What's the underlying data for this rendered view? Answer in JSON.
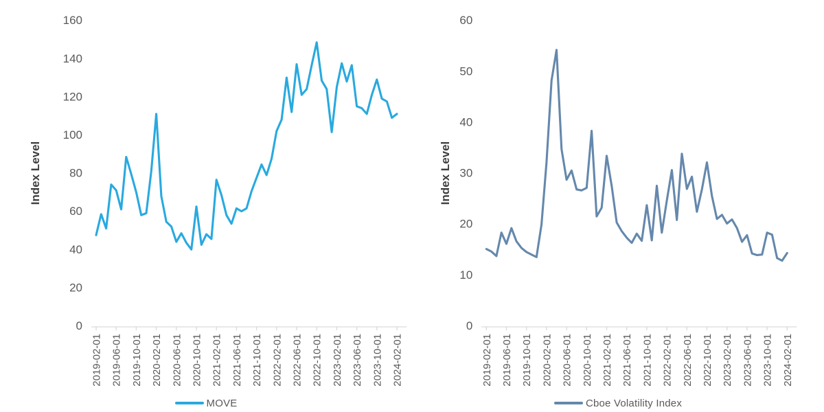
{
  "colors": {
    "background": "#ffffff",
    "axis_line": "#d9d9d9",
    "tick_label": "#595959",
    "axis_title": "#404040",
    "move_line": "#29a9df",
    "vix_line": "#6588ac"
  },
  "charts": [
    {
      "id": "move",
      "y_axis_title": "Index Level",
      "legend_label": "MOVE",
      "line_color": "#29a9df",
      "chart_data": {
        "type": "line",
        "title": "",
        "xlabel": "",
        "ylabel": "Index Level",
        "ylim": [
          0,
          160
        ],
        "ytick_step": 20,
        "xtick_every": 4,
        "grid": false,
        "legend_position": "bottom",
        "xticks_shown": [
          "2019-02-01",
          "2019-06-01",
          "2019-10-01",
          "2020-02-01",
          "2020-06-01",
          "2020-10-01",
          "2021-02-01",
          "2021-06-01",
          "2021-10-01",
          "2022-02-01",
          "2022-06-01",
          "2022-10-01",
          "2023-02-01",
          "2023-06-01",
          "2023-10-01",
          "2024-02-01"
        ],
        "x": [
          "2019-02-01",
          "2019-03-01",
          "2019-04-01",
          "2019-05-01",
          "2019-06-01",
          "2019-07-01",
          "2019-08-01",
          "2019-09-01",
          "2019-10-01",
          "2019-11-01",
          "2019-12-01",
          "2020-01-01",
          "2020-02-01",
          "2020-03-01",
          "2020-04-01",
          "2020-05-01",
          "2020-06-01",
          "2020-07-01",
          "2020-08-01",
          "2020-09-01",
          "2020-10-01",
          "2020-11-01",
          "2020-12-01",
          "2021-01-01",
          "2021-02-01",
          "2021-03-01",
          "2021-04-01",
          "2021-05-01",
          "2021-06-01",
          "2021-07-01",
          "2021-08-01",
          "2021-09-01",
          "2021-10-01",
          "2021-11-01",
          "2021-12-01",
          "2022-01-01",
          "2022-02-01",
          "2022-03-01",
          "2022-04-01",
          "2022-05-01",
          "2022-06-01",
          "2022-07-01",
          "2022-08-01",
          "2022-09-01",
          "2022-10-01",
          "2022-11-01",
          "2022-12-01",
          "2023-01-01",
          "2023-02-01",
          "2023-03-01",
          "2023-04-01",
          "2023-05-01",
          "2023-06-01",
          "2023-07-01",
          "2023-08-01",
          "2023-09-01",
          "2023-10-01",
          "2023-11-01",
          "2023-12-01",
          "2024-01-01",
          "2024-02-01"
        ],
        "values": [
          47.5,
          58.5,
          51,
          74,
          71,
          61,
          88.5,
          79.5,
          70,
          58,
          59,
          81,
          111,
          68,
          54.5,
          52,
          44,
          48.5,
          43.5,
          40,
          62.5,
          42.5,
          48,
          45.5,
          76.5,
          68.5,
          58,
          53.5,
          61.5,
          60,
          61.5,
          70.5,
          77.5,
          84.5,
          79,
          87.5,
          102,
          108,
          130,
          112,
          137,
          121,
          124,
          136.5,
          148.5,
          128.5,
          124,
          101.5,
          125,
          137.5,
          128,
          136.5,
          115,
          114,
          111,
          121,
          129,
          119,
          117.5,
          109,
          111
        ]
      }
    },
    {
      "id": "vix",
      "y_axis_title": "Index Level",
      "legend_label": "Cboe Volatility Index",
      "line_color": "#6588ac",
      "chart_data": {
        "type": "line",
        "title": "",
        "xlabel": "",
        "ylabel": "Index Level",
        "ylim": [
          0,
          60
        ],
        "ytick_step": 10,
        "xtick_every": 4,
        "grid": false,
        "legend_position": "bottom",
        "xticks_shown": [
          "2019-02-01",
          "2019-06-01",
          "2019-10-01",
          "2020-02-01",
          "2020-06-01",
          "2020-10-01",
          "2021-02-01",
          "2021-06-01",
          "2021-10-01",
          "2022-02-01",
          "2022-06-01",
          "2022-10-01",
          "2023-02-01",
          "2023-06-01",
          "2023-10-01",
          "2024-02-01"
        ],
        "x": [
          "2019-02-01",
          "2019-03-01",
          "2019-04-01",
          "2019-05-01",
          "2019-06-01",
          "2019-07-01",
          "2019-08-01",
          "2019-09-01",
          "2019-10-01",
          "2019-11-01",
          "2019-12-01",
          "2020-01-01",
          "2020-02-01",
          "2020-03-01",
          "2020-04-01",
          "2020-05-01",
          "2020-06-01",
          "2020-07-01",
          "2020-08-01",
          "2020-09-01",
          "2020-10-01",
          "2020-11-01",
          "2020-12-01",
          "2021-01-01",
          "2021-02-01",
          "2021-03-01",
          "2021-04-01",
          "2021-05-01",
          "2021-06-01",
          "2021-07-01",
          "2021-08-01",
          "2021-09-01",
          "2021-10-01",
          "2021-11-01",
          "2021-12-01",
          "2022-01-01",
          "2022-02-01",
          "2022-03-01",
          "2022-04-01",
          "2022-05-01",
          "2022-06-01",
          "2022-07-01",
          "2022-08-01",
          "2022-09-01",
          "2022-10-01",
          "2022-11-01",
          "2022-12-01",
          "2023-01-01",
          "2023-02-01",
          "2023-03-01",
          "2023-04-01",
          "2023-05-01",
          "2023-06-01",
          "2023-07-01",
          "2023-08-01",
          "2023-09-01",
          "2023-10-01",
          "2023-11-01",
          "2023-12-01",
          "2024-01-01",
          "2024-02-01"
        ],
        "values": [
          15.1,
          14.6,
          13.7,
          18.3,
          16.1,
          19.2,
          16.6,
          15.3,
          14.5,
          14.0,
          13.5,
          19.9,
          32.1,
          48.2,
          54.2,
          34.7,
          28.7,
          30.5,
          26.8,
          26.6,
          27.1,
          38.3,
          21.5,
          23.2,
          33.4,
          27.5,
          20.3,
          18.6,
          17.3,
          16.3,
          18.1,
          16.7,
          23.7,
          16.8,
          27.5,
          18.3,
          24.6,
          30.6,
          20.8,
          33.8,
          26.9,
          29.3,
          22.4,
          26.8,
          32.1,
          25.5,
          21.0,
          21.8,
          20.1,
          20.9,
          19.2,
          16.5,
          17.8,
          14.2,
          13.9,
          14.0,
          18.3,
          17.9,
          13.3,
          12.8,
          14.3
        ]
      }
    }
  ]
}
